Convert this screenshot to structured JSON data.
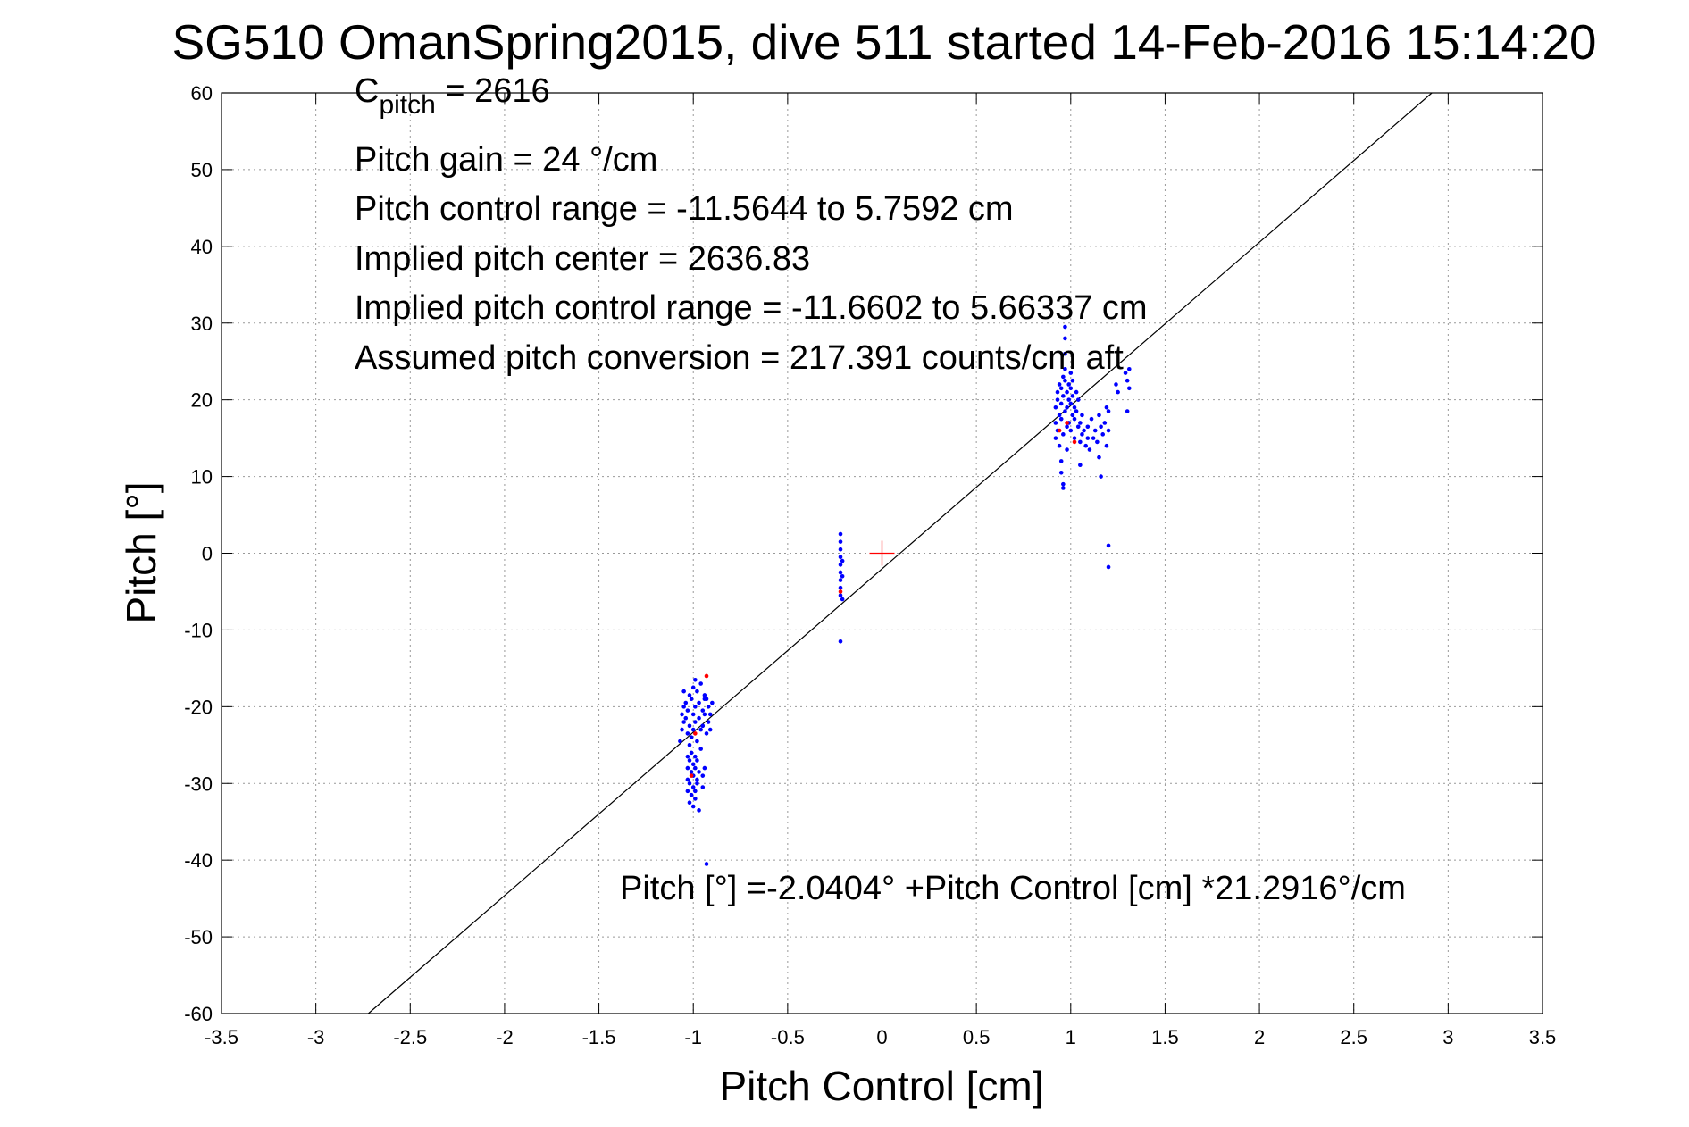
{
  "chart_data": {
    "type": "scatter",
    "title": "SG510 OmanSpring2015, dive 511 started 14-Feb-2016 15:14:20",
    "xlabel": "Pitch Control [cm]",
    "ylabel": "Pitch [°]",
    "xlim": [
      -3.5,
      3.5
    ],
    "ylim": [
      -60,
      60
    ],
    "xticks": [
      -3.5,
      -3,
      -2.5,
      -2,
      -1.5,
      -1,
      -0.5,
      0,
      0.5,
      1,
      1.5,
      2,
      2.5,
      3,
      3.5
    ],
    "xtick_labels": [
      "-3.5",
      "-3",
      "-2.5",
      "-2",
      "-1.5",
      "-1",
      "-0.5",
      "0",
      "0.5",
      "1",
      "1.5",
      "2",
      "2.5",
      "3",
      "3.5"
    ],
    "yticks": [
      60,
      50,
      40,
      30,
      20,
      10,
      0,
      -10,
      -20,
      -30,
      -40,
      -50,
      -60
    ],
    "ytick_labels": [
      "60",
      "50",
      "40",
      "30",
      "20",
      "10",
      "0",
      "-10",
      "-20",
      "-30",
      "-40",
      "-50",
      "-60"
    ],
    "grid": true,
    "colors": {
      "points": "#0000ff",
      "outliers": "#ff0000",
      "center_marker": "#ff0000",
      "fit_line": "#000000",
      "grid": "#999999"
    },
    "annotations": {
      "cpitch_base": "C",
      "cpitch_sub": "pitch",
      "cpitch_value": " = 2616",
      "pitch_gain": "Pitch gain = 24 °/cm",
      "control_range": "Pitch control range = -11.5644 to 5.7592 cm",
      "implied_center": "Implied pitch center = 2636.83",
      "implied_range": "Implied pitch control range = -11.6602 to 5.66337 cm",
      "conversion": "Assumed pitch conversion = 217.391 counts/cm aft",
      "fit_equation": "Pitch [°] =-2.0404° +Pitch Control [cm] *21.2916°/cm"
    },
    "fit": {
      "intercept": -2.0404,
      "slope": 21.2916
    },
    "center_marker": {
      "x": 0,
      "y": 0
    },
    "series": [
      {
        "color": "#0000ff",
        "points": [
          [
            -1.07,
            -24.5
          ],
          [
            -1.06,
            -23.0
          ],
          [
            -1.06,
            -21.0
          ],
          [
            -1.05,
            -20.0
          ],
          [
            -1.05,
            -22.0
          ],
          [
            -1.04,
            -19.5
          ],
          [
            -1.04,
            -21.5
          ],
          [
            -1.03,
            -23.5
          ],
          [
            -1.03,
            -20.5
          ],
          [
            -1.02,
            -18.5
          ],
          [
            -1.02,
            -22.5
          ],
          [
            -1.01,
            -19.0
          ],
          [
            -1.01,
            -24.0
          ],
          [
            -1.0,
            -17.5
          ],
          [
            -1.0,
            -21.0
          ],
          [
            -1.0,
            -23.0
          ],
          [
            -0.99,
            -20.0
          ],
          [
            -0.99,
            -22.0
          ],
          [
            -0.98,
            -18.0
          ],
          [
            -0.98,
            -24.5
          ],
          [
            -0.97,
            -19.5
          ],
          [
            -0.97,
            -21.5
          ],
          [
            -0.96,
            -17.0
          ],
          [
            -0.96,
            -23.0
          ],
          [
            -0.95,
            -20.5
          ],
          [
            -0.95,
            -22.5
          ],
          [
            -0.94,
            -18.5
          ],
          [
            -0.94,
            -21.0
          ],
          [
            -0.93,
            -19.0
          ],
          [
            -0.93,
            -23.5
          ],
          [
            -0.92,
            -20.0
          ],
          [
            -0.92,
            -22.0
          ],
          [
            -0.91,
            -21.0
          ],
          [
            -0.9,
            -19.5
          ],
          [
            -0.91,
            -23.0
          ],
          [
            -1.02,
            -25.0
          ],
          [
            -0.96,
            -25.5
          ],
          [
            -1.05,
            -18.0
          ],
          [
            -0.99,
            -16.5
          ],
          [
            -0.94,
            -19.0
          ],
          [
            -1.03,
            -26.5
          ],
          [
            -1.03,
            -28.0
          ],
          [
            -1.03,
            -29.5
          ],
          [
            -1.03,
            -31.0
          ],
          [
            -1.02,
            -27.0
          ],
          [
            -1.02,
            -30.0
          ],
          [
            -1.02,
            -32.5
          ],
          [
            -1.01,
            -26.0
          ],
          [
            -1.01,
            -28.5
          ],
          [
            -1.01,
            -31.5
          ],
          [
            -1.0,
            -27.5
          ],
          [
            -1.0,
            -29.0
          ],
          [
            -1.0,
            -30.5
          ],
          [
            -1.0,
            -33.0
          ],
          [
            -0.99,
            -26.5
          ],
          [
            -0.99,
            -28.0
          ],
          [
            -0.99,
            -31.0
          ],
          [
            -0.99,
            -32.0
          ],
          [
            -0.98,
            -27.0
          ],
          [
            -0.98,
            -29.5
          ],
          [
            -0.98,
            -30.0
          ],
          [
            -0.97,
            -28.5
          ],
          [
            -0.97,
            -33.5
          ],
          [
            -0.95,
            -29.0
          ],
          [
            -0.95,
            -30.5
          ],
          [
            -0.94,
            -28.0
          ],
          [
            -0.93,
            -40.5
          ],
          [
            -0.22,
            2.5
          ],
          [
            -0.22,
            1.5
          ],
          [
            -0.22,
            0.5
          ],
          [
            -0.22,
            -0.5
          ],
          [
            -0.22,
            -1.5
          ],
          [
            -0.22,
            -2.5
          ],
          [
            -0.22,
            -3.5
          ],
          [
            -0.22,
            -4.5
          ],
          [
            -0.22,
            -5.5
          ],
          [
            -0.21,
            -1.0
          ],
          [
            -0.21,
            -3.0
          ],
          [
            -0.21,
            -6.0
          ],
          [
            -0.22,
            -11.5
          ],
          [
            0.92,
            15.0
          ],
          [
            0.92,
            17.0
          ],
          [
            0.92,
            19.0
          ],
          [
            0.93,
            20.0
          ],
          [
            0.93,
            21.0
          ],
          [
            0.93,
            16.0
          ],
          [
            0.94,
            18.0
          ],
          [
            0.94,
            22.0
          ],
          [
            0.94,
            14.0
          ],
          [
            0.95,
            19.5
          ],
          [
            0.95,
            21.5
          ],
          [
            0.95,
            17.5
          ],
          [
            0.95,
            12.0
          ],
          [
            0.95,
            10.5
          ],
          [
            0.96,
            20.5
          ],
          [
            0.96,
            23.0
          ],
          [
            0.96,
            15.5
          ],
          [
            0.96,
            9.0
          ],
          [
            0.96,
            8.5
          ],
          [
            0.97,
            18.5
          ],
          [
            0.97,
            22.5
          ],
          [
            0.97,
            24.0
          ],
          [
            0.97,
            26.0
          ],
          [
            0.97,
            28.0
          ],
          [
            0.97,
            29.5
          ],
          [
            0.98,
            19.0
          ],
          [
            0.98,
            21.0
          ],
          [
            0.98,
            16.5
          ],
          [
            0.98,
            13.5
          ],
          [
            0.99,
            20.0
          ],
          [
            0.99,
            22.0
          ],
          [
            0.99,
            17.0
          ],
          [
            1.0,
            19.5
          ],
          [
            1.0,
            21.5
          ],
          [
            1.0,
            23.5
          ],
          [
            1.0,
            16.0
          ],
          [
            1.01,
            18.0
          ],
          [
            1.01,
            20.5
          ],
          [
            1.01,
            22.5
          ],
          [
            1.02,
            17.5
          ],
          [
            1.02,
            19.0
          ],
          [
            1.02,
            15.0
          ],
          [
            1.03,
            21.0
          ],
          [
            1.03,
            18.5
          ],
          [
            1.04,
            16.5
          ],
          [
            1.04,
            20.0
          ],
          [
            1.05,
            14.5
          ],
          [
            1.05,
            17.0
          ],
          [
            1.05,
            11.5
          ],
          [
            1.06,
            18.0
          ],
          [
            1.06,
            15.5
          ],
          [
            1.07,
            16.0
          ],
          [
            1.08,
            14.0
          ],
          [
            1.09,
            15.0
          ],
          [
            1.09,
            16.5
          ],
          [
            1.1,
            13.5
          ],
          [
            1.11,
            17.5
          ],
          [
            1.12,
            15.0
          ],
          [
            1.13,
            16.0
          ],
          [
            1.14,
            14.5
          ],
          [
            1.15,
            18.0
          ],
          [
            1.15,
            12.5
          ],
          [
            1.16,
            16.5
          ],
          [
            1.16,
            10.0
          ],
          [
            1.17,
            15.5
          ],
          [
            1.18,
            17.0
          ],
          [
            1.19,
            19.0
          ],
          [
            1.19,
            14.0
          ],
          [
            1.2,
            18.5
          ],
          [
            1.2,
            16.0
          ],
          [
            1.2,
            1.0
          ],
          [
            1.2,
            -1.8
          ],
          [
            1.24,
            22.0
          ],
          [
            1.25,
            21.0
          ],
          [
            1.29,
            23.5
          ],
          [
            1.3,
            22.5
          ],
          [
            1.31,
            24.0
          ],
          [
            1.31,
            21.5
          ],
          [
            1.3,
            18.5
          ]
        ]
      },
      {
        "color": "#ff0000",
        "points": [
          [
            -0.93,
            -16.0
          ],
          [
            -0.99,
            -23.5
          ],
          [
            -1.01,
            -29.0
          ],
          [
            -0.22,
            -5.0
          ],
          [
            0.98,
            17.0
          ],
          [
            1.02,
            14.5
          ],
          [
            0.94,
            16.0
          ]
        ]
      }
    ]
  }
}
